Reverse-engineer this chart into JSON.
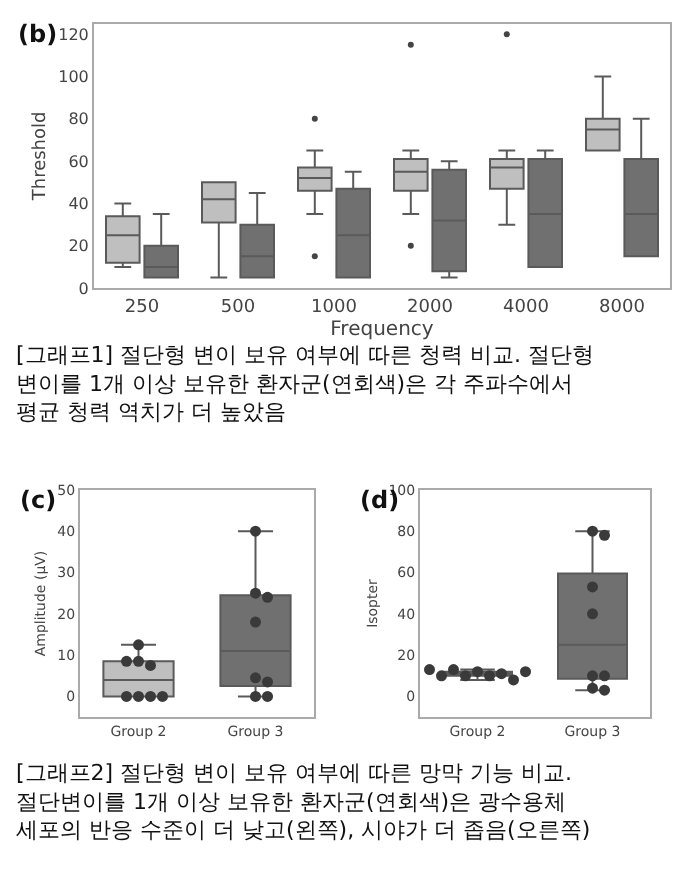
{
  "chart_data": [
    {
      "type": "box",
      "title": "(b)",
      "xlabel": "Frequency",
      "ylabel": "Threshold",
      "categories": [
        "250",
        "500",
        "1000",
        "2000",
        "4000",
        "8000"
      ],
      "ylim": [
        0,
        125
      ],
      "yticks": [
        0,
        20,
        40,
        60,
        80,
        100,
        120
      ],
      "series": [
        {
          "color": "#bfbfbf",
          "boxes": [
            {
              "low": 10,
              "q1": 12,
              "median": 25,
              "q3": 34,
              "high": 40
            },
            {
              "low": 5,
              "q1": 31,
              "median": 42,
              "q3": 50,
              "high": 50
            },
            {
              "low": 35,
              "q1": 46,
              "median": 52,
              "q3": 57,
              "high": 65,
              "outliers": [
                80,
                15
              ]
            },
            {
              "low": 35,
              "q1": 46,
              "median": 55,
              "q3": 61,
              "high": 65,
              "outliers": [
                115,
                20
              ]
            },
            {
              "low": 30,
              "q1": 47,
              "median": 57,
              "q3": 61,
              "high": 65,
              "outliers": [
                120
              ]
            },
            {
              "low": 65,
              "q1": 65,
              "median": 75,
              "q3": 80,
              "high": 100
            }
          ]
        },
        {
          "color": "#707070",
          "boxes": [
            {
              "low": 5,
              "q1": 5,
              "median": 10,
              "q3": 20,
              "high": 35
            },
            {
              "low": 5,
              "q1": 5,
              "median": 15,
              "q3": 30,
              "high": 45
            },
            {
              "low": 5,
              "q1": 5,
              "median": 25,
              "q3": 47,
              "high": 55
            },
            {
              "low": 5,
              "q1": 8,
              "median": 32,
              "q3": 56,
              "high": 60
            },
            {
              "low": 10,
              "q1": 10,
              "median": 35,
              "q3": 61,
              "high": 65
            },
            {
              "low": 15,
              "q1": 15,
              "median": 35,
              "q3": 61,
              "high": 80
            }
          ]
        }
      ],
      "annotations": [
        "[그래프1] 절단형 변이 보유 여부에 따른 청력 비교. 절단형 변이를 1개 이상 보유한 환자군(연회색)은 각 주파수에서 평균 청력 역치가 더 높았음"
      ]
    },
    {
      "type": "box",
      "title": "(c)",
      "ylabel": "Amplitude (μV)",
      "categories": [
        "Group 2",
        "Group 3"
      ],
      "ylim": [
        -5,
        50
      ],
      "yticks": [
        0,
        10,
        20,
        30,
        40,
        50
      ],
      "series": [
        {
          "colors": [
            "#bfbfbf",
            "#707070"
          ],
          "boxes": [
            {
              "low": 0,
              "q1": 0,
              "median": 4,
              "q3": 8.5,
              "high": 12.5
            },
            {
              "low": 0,
              "q1": 2.5,
              "median": 11,
              "q3": 24.5,
              "high": 40
            }
          ]
        },
        {
          "type": "scatter",
          "color": "#3a3a3a",
          "x": [
            "Group 2",
            "Group 2",
            "Group 2",
            "Group 2",
            "Group 2",
            "Group 2",
            "Group 2",
            "Group 2",
            "Group 3",
            "Group 3",
            "Group 3",
            "Group 3",
            "Group 3",
            "Group 3",
            "Group 3",
            "Group 3"
          ],
          "values": [
            0,
            0,
            0,
            0,
            8.5,
            7.5,
            8.5,
            12.5,
            40,
            25,
            24,
            18,
            4.5,
            3.5,
            0,
            0
          ]
        }
      ]
    },
    {
      "type": "box",
      "title": "(d)",
      "ylabel": "Isopter",
      "categories": [
        "Group 2",
        "Group 3"
      ],
      "ylim": [
        -10,
        100
      ],
      "yticks": [
        0,
        20,
        40,
        60,
        80,
        100
      ],
      "series": [
        {
          "colors": [
            "#bfbfbf",
            "#707070"
          ],
          "boxes": [
            {
              "low": 8,
              "q1": 10,
              "median": 11,
              "q3": 12,
              "high": 13
            },
            {
              "low": 3,
              "q1": 8.5,
              "median": 25,
              "q3": 59.5,
              "high": 80
            }
          ]
        },
        {
          "type": "scatter",
          "color": "#3a3a3a",
          "x": [
            "Group 2",
            "Group 2",
            "Group 2",
            "Group 2",
            "Group 2",
            "Group 2",
            "Group 2",
            "Group 2",
            "Group 2",
            "Group 3",
            "Group 3",
            "Group 3",
            "Group 3",
            "Group 3",
            "Group 3",
            "Group 3",
            "Group 3"
          ],
          "values": [
            12,
            10,
            10,
            11,
            13,
            8,
            10,
            12,
            13,
            80,
            78,
            53,
            40,
            10,
            10,
            4,
            3
          ]
        }
      ],
      "annotations": [
        "[그래프2] 절단형 변이 보유 여부에 따른 망막 기능 비교. 절단변이를 1개 이상 보유한 환자군(연회색)은 광수용체 세포의 반응 수준이 더 낮고(왼쪽), 시야가 더 좁음(오른쪽)"
      ]
    }
  ]
}
